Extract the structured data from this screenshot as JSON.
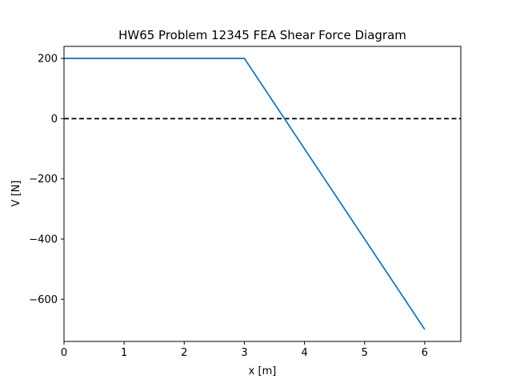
{
  "chart_data": {
    "type": "line",
    "title": "HW65 Problem 12345 FEA Shear Force Diagram",
    "xlabel": "x [m]",
    "ylabel": "V [N]",
    "xlim": [
      0,
      6.6
    ],
    "ylim": [
      -740,
      240
    ],
    "xticks": [
      0,
      1,
      2,
      3,
      4,
      5,
      6
    ],
    "xtick_labels": [
      "0",
      "1",
      "2",
      "3",
      "4",
      "5",
      "6"
    ],
    "yticks": [
      200,
      0,
      -200,
      -400,
      -600
    ],
    "ytick_labels": [
      "200",
      "0",
      "−200",
      "−400",
      "−600"
    ],
    "grid": false,
    "series": [
      {
        "x": [
          0,
          3,
          6
        ],
        "y": [
          200,
          200,
          -700
        ],
        "color": "#1f77b4",
        "style": "solid"
      }
    ],
    "reference_lines": [
      {
        "orientation": "horizontal",
        "value": 0,
        "color": "#000000",
        "style": "dashed"
      }
    ]
  }
}
